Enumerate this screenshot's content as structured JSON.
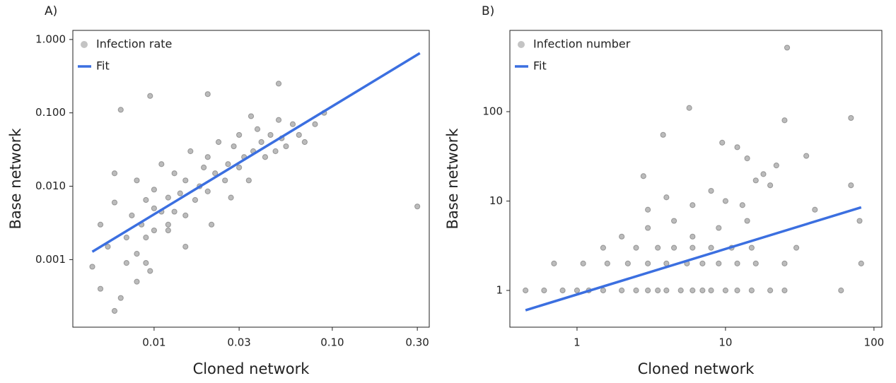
{
  "chart_data": [
    {
      "type": "scatter",
      "panel_label": "A)",
      "xlabel": "Cloned network",
      "ylabel": "Base network",
      "xscale": "log",
      "yscale": "log",
      "legend": "upper left",
      "grid": false,
      "xlim": [
        0.0035,
        0.35
      ],
      "ylim": [
        0.00012,
        1.33
      ],
      "xticks": [
        0.01,
        0.03,
        {
          "value": 0.1,
          "label": "0.10"
        },
        {
          "value": 0.3,
          "label": "0.30"
        }
      ],
      "yticks": [
        {
          "value": 0.001,
          "label": "0.001"
        },
        {
          "value": 0.01,
          "label": "0.010"
        },
        {
          "value": 0.1,
          "label": "0.100"
        },
        {
          "value": 1,
          "label": "1.000"
        }
      ],
      "series": [
        {
          "name": "Infection rate",
          "type": "scatter",
          "color": "#555555",
          "x": [
            0.0045,
            0.005,
            0.005,
            0.0055,
            0.006,
            0.006,
            0.0065,
            0.007,
            0.007,
            0.0075,
            0.008,
            0.008,
            0.0085,
            0.009,
            0.009,
            0.0095,
            0.01,
            0.01,
            0.01,
            0.011,
            0.011,
            0.012,
            0.012,
            0.013,
            0.013,
            0.014,
            0.015,
            0.015,
            0.016,
            0.017,
            0.018,
            0.019,
            0.02,
            0.02,
            0.021,
            0.022,
            0.023,
            0.025,
            0.026,
            0.027,
            0.028,
            0.03,
            0.03,
            0.032,
            0.034,
            0.036,
            0.038,
            0.04,
            0.042,
            0.045,
            0.048,
            0.05,
            0.052,
            0.055,
            0.06,
            0.065,
            0.07,
            0.08,
            0.09,
            0.3,
            0.006,
            0.008,
            0.0095,
            0.012,
            0.02,
            0.05,
            0.0065,
            0.009,
            0.035,
            0.015
          ],
          "values": [
            0.0008,
            0.0004,
            0.003,
            0.0015,
            0.0002,
            0.006,
            0.11,
            0.002,
            0.0009,
            0.004,
            0.0005,
            0.012,
            0.003,
            0.0065,
            0.002,
            0.17,
            0.005,
            0.0025,
            0.009,
            0.0045,
            0.02,
            0.003,
            0.007,
            0.015,
            0.0045,
            0.008,
            0.012,
            0.004,
            0.03,
            0.0065,
            0.01,
            0.018,
            0.0085,
            0.025,
            0.003,
            0.015,
            0.04,
            0.012,
            0.02,
            0.007,
            0.035,
            0.018,
            0.05,
            0.025,
            0.012,
            0.03,
            0.06,
            0.04,
            0.025,
            0.05,
            0.03,
            0.08,
            0.045,
            0.035,
            0.07,
            0.05,
            0.04,
            0.07,
            0.1,
            0.0053,
            0.015,
            0.0012,
            0.0007,
            0.0025,
            0.18,
            0.25,
            0.0003,
            0.0009,
            0.09,
            0.0015
          ]
        },
        {
          "name": "Fit",
          "type": "line",
          "color": "#3b6fe0",
          "x": [
            0.0045,
            0.31
          ],
          "values": [
            0.00128,
            0.65
          ]
        }
      ]
    },
    {
      "type": "scatter",
      "panel_label": "B)",
      "xlabel": "Cloned network",
      "ylabel": "Base network",
      "xscale": "log",
      "yscale": "log",
      "legend": "upper left",
      "grid": false,
      "xlim": [
        0.353,
        113
      ],
      "ylim": [
        0.388,
        811
      ],
      "xticks": [
        1,
        10,
        100
      ],
      "yticks": [
        1,
        10,
        100
      ],
      "series": [
        {
          "name": "Infection number",
          "type": "scatter",
          "color": "#555555",
          "x": [
            0.45,
            0.6,
            0.8,
            1,
            1.2,
            1.5,
            2,
            2.5,
            3,
            3.5,
            4,
            5,
            6,
            7,
            8,
            10,
            12,
            15,
            20,
            25,
            0.7,
            1.1,
            1.6,
            2.2,
            3,
            4,
            5.5,
            7,
            9,
            12,
            16,
            25,
            1.5,
            2.5,
            3.5,
            4.5,
            6,
            8,
            11,
            15,
            30,
            2,
            3,
            4.5,
            6,
            9,
            14,
            3,
            4,
            6,
            8,
            10,
            13,
            16,
            20,
            40,
            70,
            80,
            2.8,
            3.8,
            5.7,
            9.5,
            14,
            25,
            35,
            70,
            26,
            12,
            18,
            22,
            60,
            82
          ],
          "values": [
            1,
            1,
            1,
            1,
            1,
            1,
            1,
            1,
            1,
            1,
            1,
            1,
            1,
            1,
            1,
            1,
            1,
            1,
            1,
            1,
            2,
            2,
            2,
            2,
            2,
            2,
            2,
            2,
            2,
            2,
            2,
            2,
            3,
            3,
            3,
            3,
            3,
            3,
            3,
            3,
            3,
            4,
            5,
            6,
            4,
            5,
            6,
            8,
            11,
            9,
            13,
            10,
            9,
            17,
            15,
            8,
            15,
            6,
            19,
            55,
            110,
            45,
            30,
            80,
            32,
            85,
            520,
            40,
            20,
            25,
            1,
            2
          ]
        },
        {
          "name": "Fit",
          "type": "line",
          "color": "#3b6fe0",
          "x": [
            0.45,
            82
          ],
          "values": [
            0.6,
            8.5
          ]
        }
      ]
    }
  ]
}
